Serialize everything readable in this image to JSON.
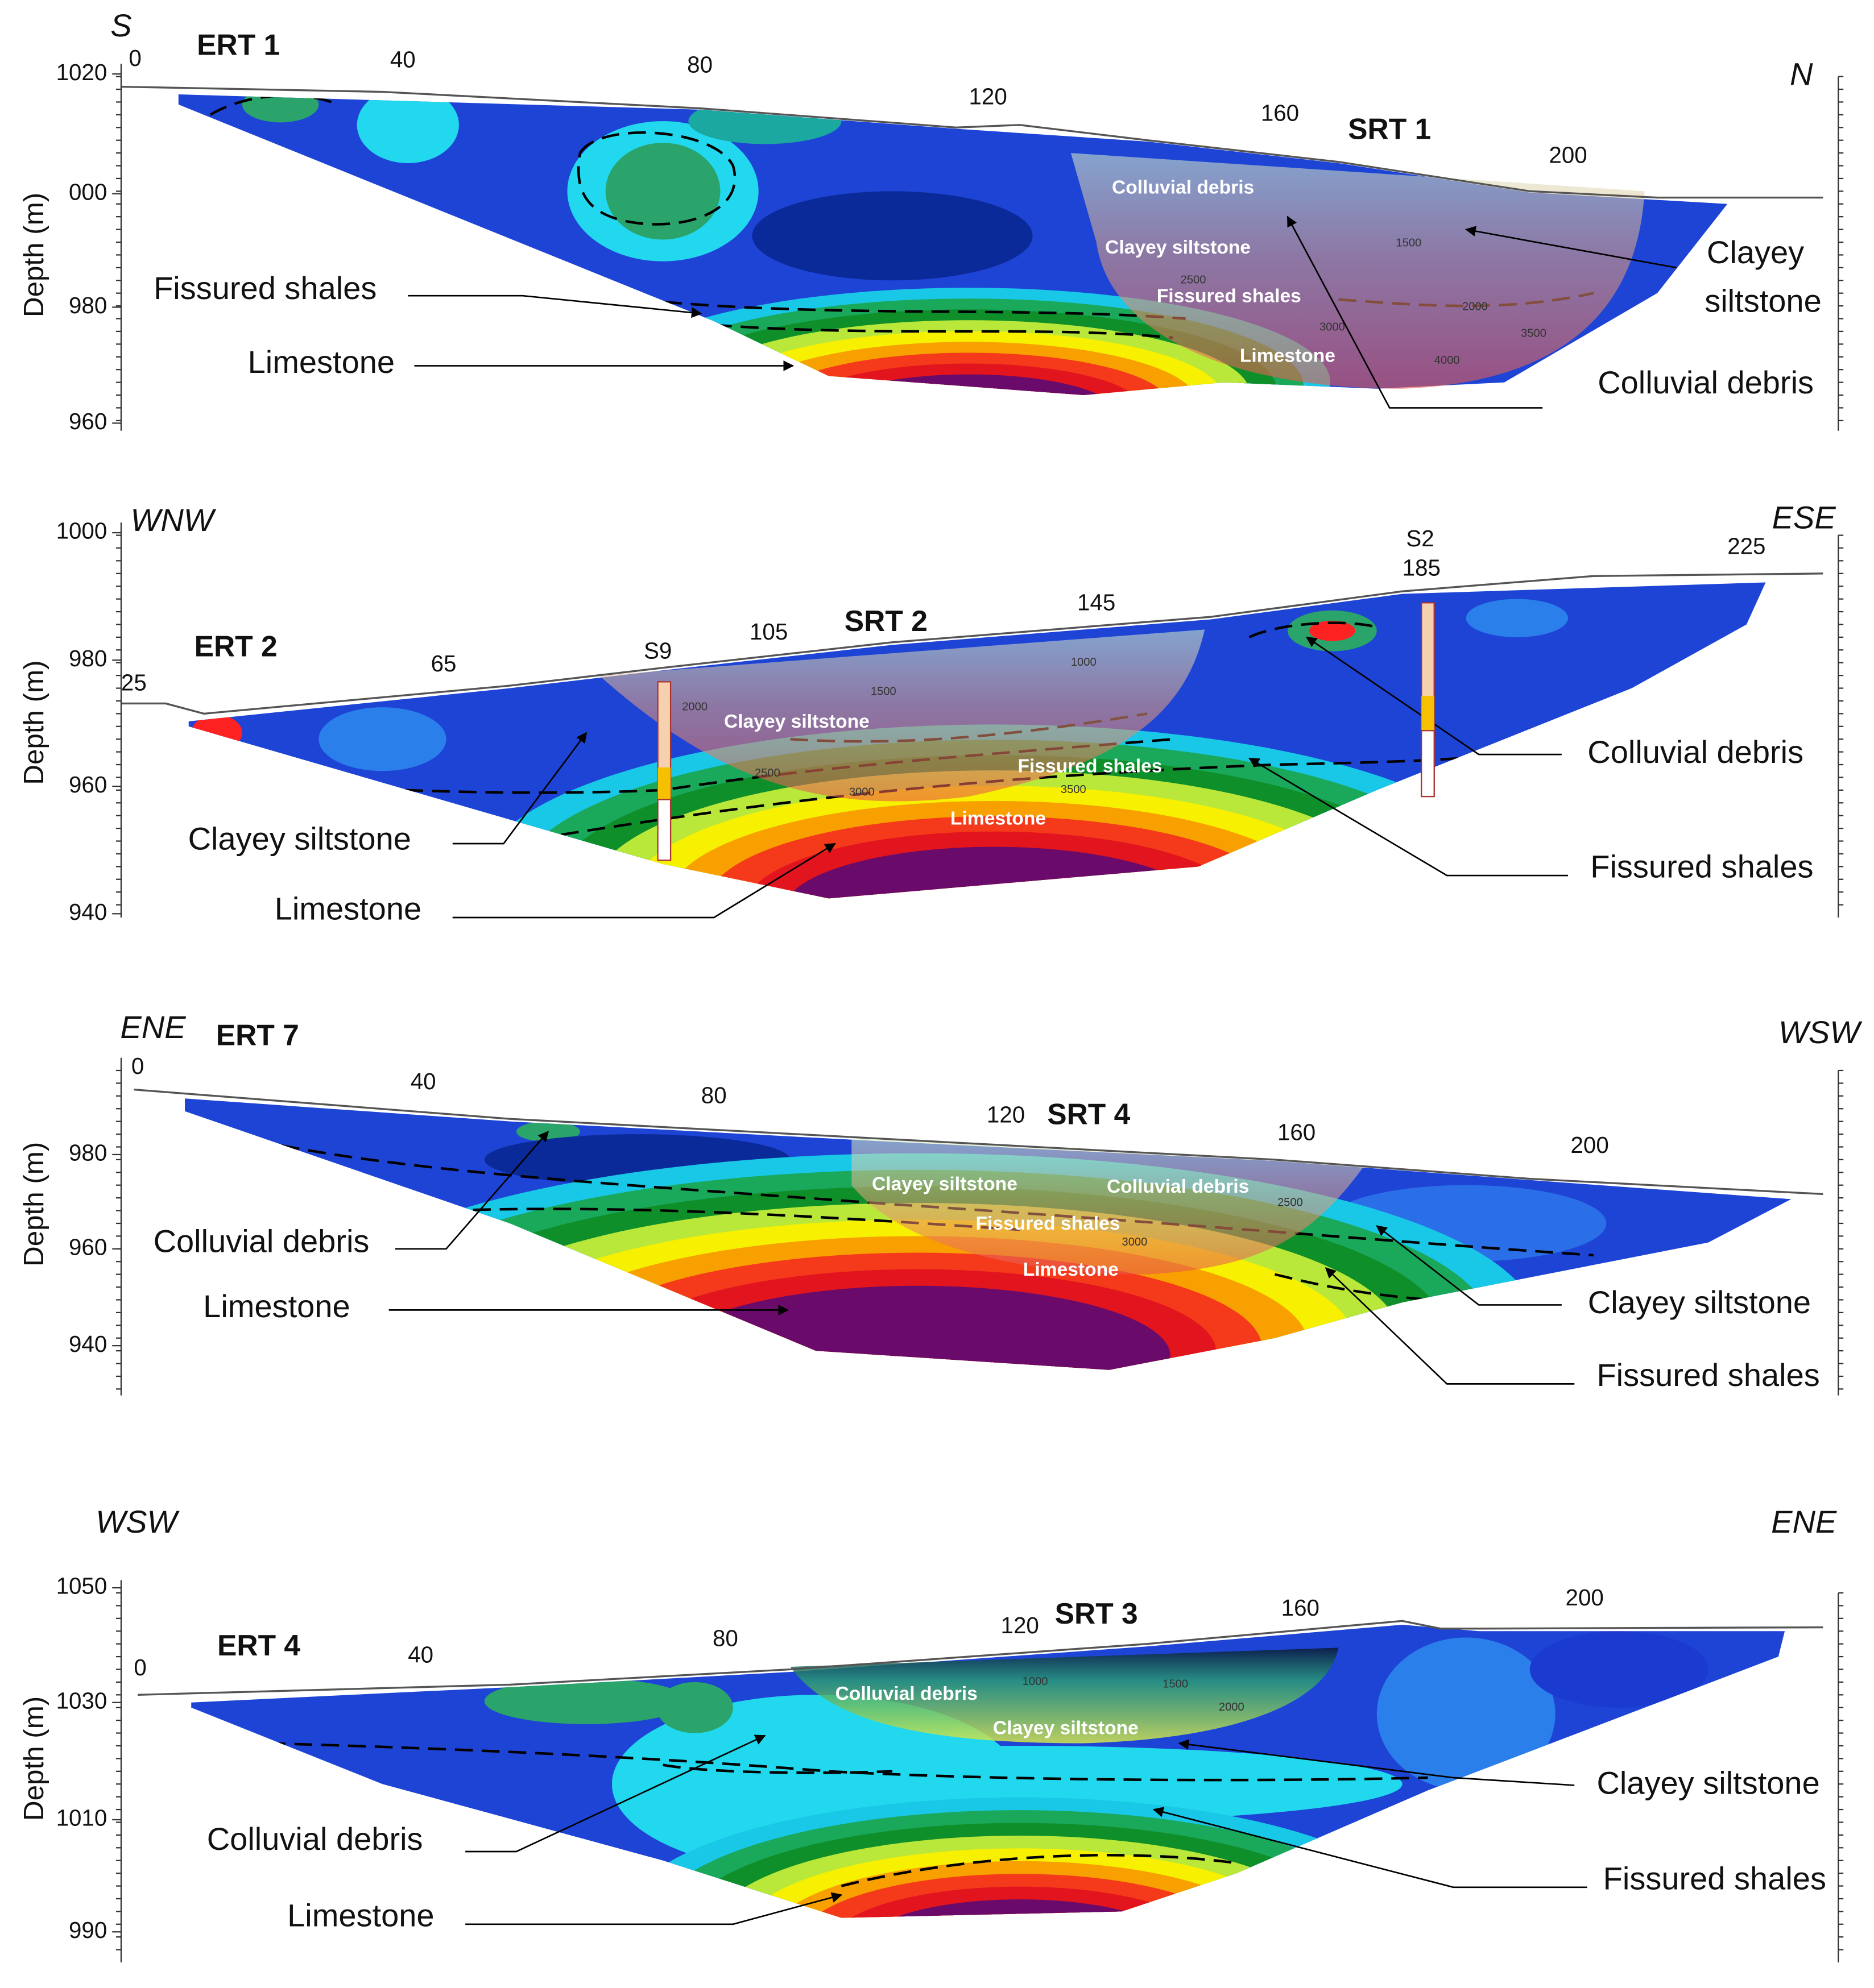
{
  "panels": [
    {
      "direction_left": "S",
      "direction_right": "N",
      "ert_label": "ERT 1",
      "srt_label": "SRT 1",
      "y_axis_label": "Depth (m)",
      "depth_ticks": [
        "1020",
        "000",
        "980",
        "960"
      ],
      "distance_ticks": [
        "0",
        "40",
        "80",
        "120",
        "160",
        "200"
      ],
      "layer_labels": [
        "Colluvial debris",
        "Clayey siltstone",
        "Fissured shales",
        "Limestone"
      ],
      "contour_labels": [
        "1500",
        "2500",
        "2000",
        "3000",
        "3500",
        "4000"
      ],
      "callouts": [
        "Fissured shales",
        "Limestone",
        "Clayey",
        "siltstone",
        "Colluvial debris"
      ]
    },
    {
      "direction_left": "WNW",
      "direction_right": "ESE",
      "ert_label": "ERT 2",
      "srt_label": "SRT 2",
      "y_axis_label": "Depth (m)",
      "depth_ticks": [
        "1000",
        "980",
        "960",
        "940"
      ],
      "distance_ticks": [
        "25",
        "65",
        "105",
        "145",
        "185",
        "225"
      ],
      "boreholes": [
        "S9",
        "S2"
      ],
      "layer_labels": [
        "Clayey siltstone",
        "Fissured shales",
        "Limestone"
      ],
      "contour_labels": [
        "1000",
        "1500",
        "2000",
        "2500",
        "3000",
        "3500"
      ],
      "callouts": [
        "Colluvial debris",
        "Fissured shales",
        "Clayey siltstone",
        "Limestone"
      ]
    },
    {
      "direction_left": "ENE",
      "direction_right": "WSW",
      "ert_label": "ERT 7",
      "srt_label": "SRT 4",
      "y_axis_label": "Depth (m)",
      "depth_ticks": [
        "980",
        "960",
        "940"
      ],
      "distance_ticks": [
        "0",
        "40",
        "80",
        "120",
        "160",
        "200"
      ],
      "layer_labels": [
        "Clayey siltstone",
        "Colluvial debris",
        "Fissured shales",
        "Limestone"
      ],
      "contour_labels": [
        "2500",
        "3000"
      ],
      "callouts": [
        "Colluvial debris",
        "Limestone",
        "Clayey siltstone",
        "Fissured shales"
      ]
    },
    {
      "direction_left": "WSW",
      "direction_right": "ENE",
      "ert_label": "ERT 4",
      "srt_label": "SRT 3",
      "y_axis_label": "Depth (m)",
      "depth_ticks": [
        "1050",
        "1030",
        "1010",
        "990"
      ],
      "distance_ticks": [
        "0",
        "40",
        "80",
        "120",
        "160",
        "200"
      ],
      "layer_labels": [
        "Colluvial debris",
        "Clayey siltstone"
      ],
      "contour_labels": [
        "1000",
        "1500",
        "2000"
      ],
      "callouts": [
        "Clayey siltstone",
        "Colluvial debris",
        "Fissured shales",
        "Limestone"
      ]
    }
  ]
}
